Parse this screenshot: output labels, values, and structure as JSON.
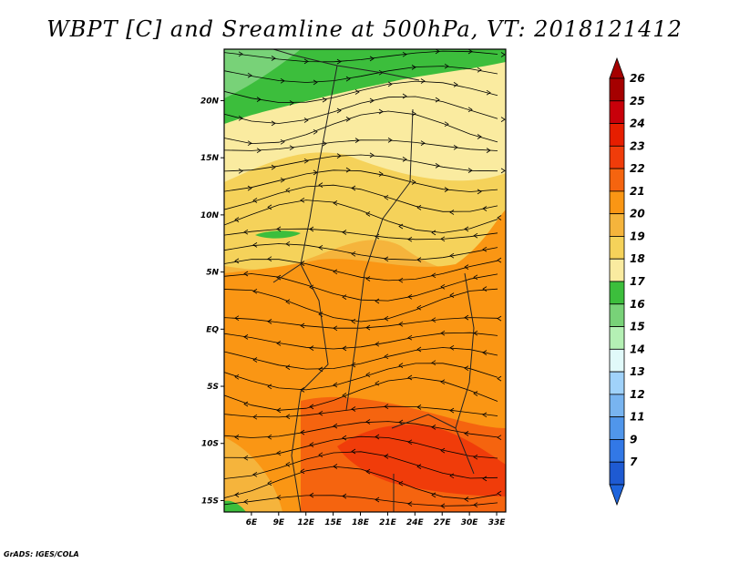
{
  "title": "WBPT [C] and Sreamline at 500hPa, VT: 2018121412",
  "footer": "GrADS: IGES/COLA",
  "map": {
    "lon_range": [
      3,
      34
    ],
    "lat_range": [
      -16,
      24.5
    ],
    "lat_ticks": [
      {
        "value": 20,
        "label": "20N"
      },
      {
        "value": 15,
        "label": "15N"
      },
      {
        "value": 10,
        "label": "10N"
      },
      {
        "value": 5,
        "label": "5N"
      },
      {
        "value": 0,
        "label": "EQ"
      },
      {
        "value": -5,
        "label": "5S"
      },
      {
        "value": -10,
        "label": "10S"
      },
      {
        "value": -15,
        "label": "15S"
      }
    ],
    "lon_ticks": [
      {
        "value": 6,
        "label": "6E"
      },
      {
        "value": 9,
        "label": "9E"
      },
      {
        "value": 12,
        "label": "12E"
      },
      {
        "value": 15,
        "label": "15E"
      },
      {
        "value": 18,
        "label": "18E"
      },
      {
        "value": 21,
        "label": "21E"
      },
      {
        "value": 24,
        "label": "24E"
      },
      {
        "value": 27,
        "label": "27E"
      },
      {
        "value": 30,
        "label": "30E"
      },
      {
        "value": 33,
        "label": "33E"
      }
    ]
  },
  "colorbar": {
    "levels": [
      {
        "label": "26",
        "color": "#a50000"
      },
      {
        "label": "25",
        "color": "#c8000a"
      },
      {
        "label": "24",
        "color": "#e61e00"
      },
      {
        "label": "23",
        "color": "#f03c0a"
      },
      {
        "label": "22",
        "color": "#f5640f"
      },
      {
        "label": "21",
        "color": "#fa9614"
      },
      {
        "label": "20",
        "color": "#f5b43c"
      },
      {
        "label": "19",
        "color": "#f5d25a"
      },
      {
        "label": "18",
        "color": "#faeba0"
      },
      {
        "label": "17",
        "color": "#3cbe3c"
      },
      {
        "label": "16",
        "color": "#78d278"
      },
      {
        "label": "15",
        "color": "#b4f0b4"
      },
      {
        "label": "14",
        "color": "#e1fafa"
      },
      {
        "label": "13",
        "color": "#a0d2fa"
      },
      {
        "label": "12",
        "color": "#78b4f0"
      },
      {
        "label": "11",
        "color": "#5096eb"
      },
      {
        "label": "9",
        "color": "#3278e6"
      },
      {
        "label": "7",
        "color": "#1e5ad2"
      }
    ],
    "bottom_color": "#1e64dc"
  }
}
